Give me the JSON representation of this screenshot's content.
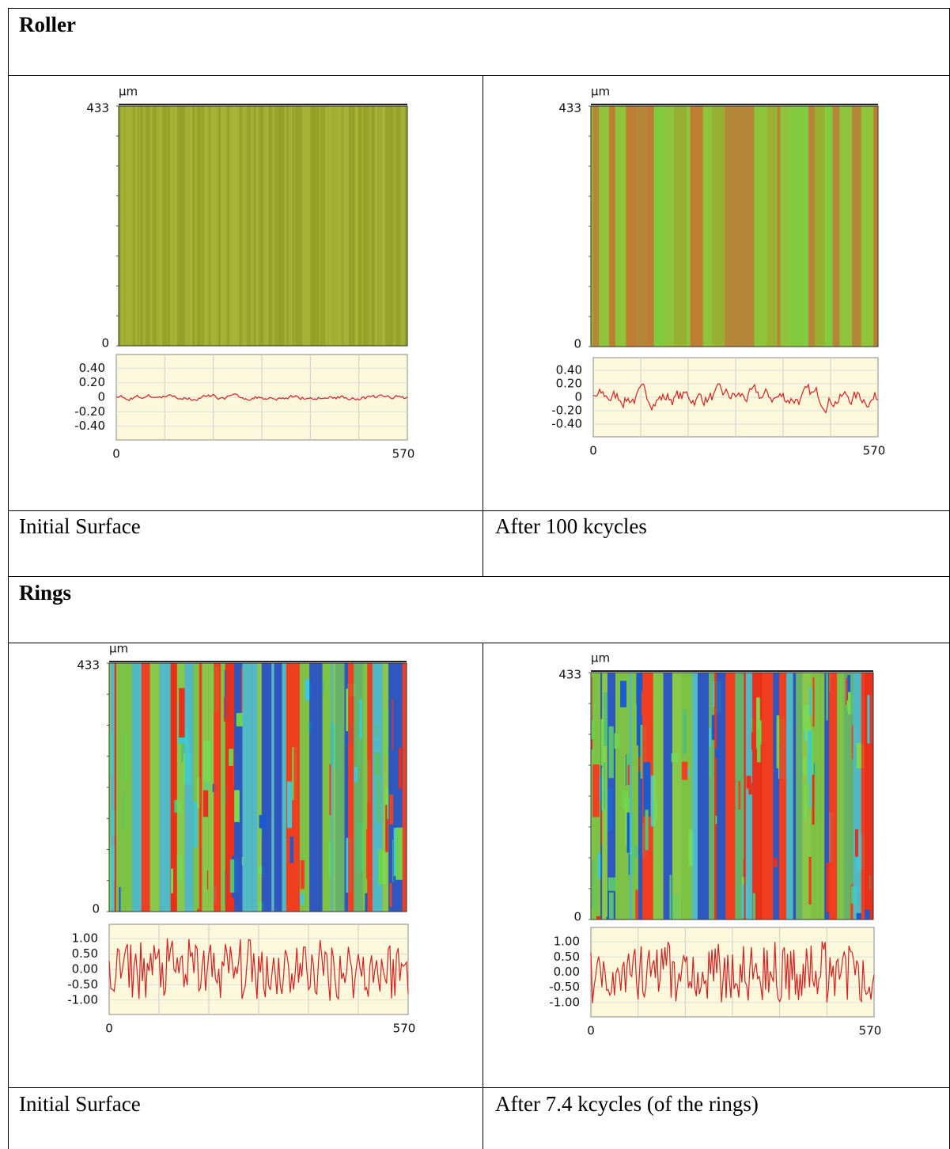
{
  "table": {
    "sections": [
      {
        "title": "Roller",
        "panels": [
          {
            "unit": "µm",
            "map_y_labels": [
              "433",
              "0"
            ],
            "profile_y_labels": [
              "0.40",
              "0.20",
              "0",
              "-0.20",
              "-0.40"
            ],
            "x_labels": [
              "0",
              "570"
            ],
            "caption": "Initial Surface"
          },
          {
            "unit": "µm",
            "map_y_labels": [
              "433",
              "0"
            ],
            "profile_y_labels": [
              "0.40",
              "0.20",
              "0",
              "-0.20",
              "-0.40"
            ],
            "x_labels": [
              "0",
              "570"
            ],
            "caption": "After 100 kcycles"
          }
        ]
      },
      {
        "title": "Rings",
        "panels": [
          {
            "unit": "µm",
            "map_y_labels": [
              "433",
              "0"
            ],
            "profile_y_labels": [
              "1.00",
              "0.50",
              "0.00",
              "-0.50",
              "-1.00"
            ],
            "x_labels": [
              "0",
              "570"
            ],
            "caption": "Initial Surface"
          },
          {
            "unit": "µm",
            "map_y_labels": [
              "433",
              "0"
            ],
            "profile_y_labels": [
              "1.00",
              "0.50",
              "0.00",
              "-0.50",
              "-1.00"
            ],
            "x_labels": [
              "0",
              "570"
            ],
            "caption": "After 7.4 kcycles (of the rings)"
          }
        ]
      }
    ]
  }
}
